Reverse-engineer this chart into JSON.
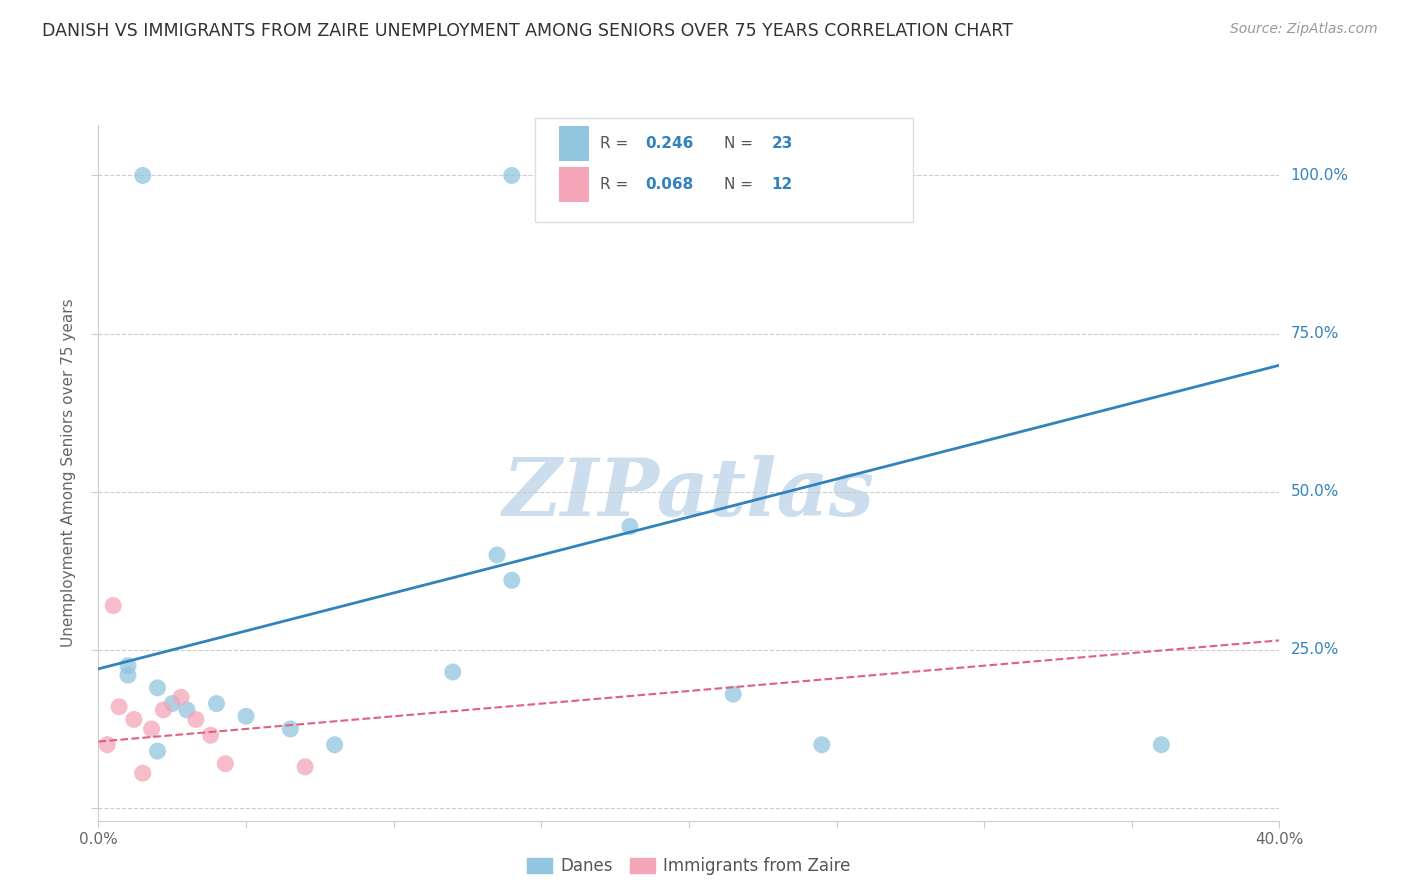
{
  "title": "DANISH VS IMMIGRANTS FROM ZAIRE UNEMPLOYMENT AMONG SENIORS OVER 75 YEARS CORRELATION CHART",
  "source": "Source: ZipAtlas.com",
  "ylabel": "Unemployment Among Seniors over 75 years",
  "xlim": [
    0.0,
    0.4
  ],
  "ylim": [
    -0.02,
    1.08
  ],
  "yticks": [
    0.0,
    0.25,
    0.5,
    0.75,
    1.0
  ],
  "ytick_labels": [
    "",
    "25.0%",
    "50.0%",
    "75.0%",
    "100.0%"
  ],
  "xticks": [
    0.0,
    0.05,
    0.1,
    0.15,
    0.2,
    0.25,
    0.3,
    0.35,
    0.4
  ],
  "xtick_labels": [
    "0.0%",
    "",
    "",
    "",
    "",
    "",
    "",
    "",
    "40.0%"
  ],
  "danes_R": 0.246,
  "danes_N": 23,
  "immigrants_R": 0.068,
  "immigrants_N": 12,
  "danes_color": "#92c5de",
  "immigrants_color": "#f4a6b8",
  "regression_blue_color": "#3182bd",
  "regression_pink_color": "#e06080",
  "danes_x": [
    0.015,
    0.14,
    0.18,
    0.19,
    0.2,
    0.21,
    0.01,
    0.02,
    0.025,
    0.03,
    0.04,
    0.05,
    0.065,
    0.08,
    0.12,
    0.135,
    0.14,
    0.18,
    0.215,
    0.245,
    0.36,
    0.01,
    0.02
  ],
  "danes_y": [
    1.0,
    1.0,
    1.0,
    1.0,
    1.0,
    1.0,
    0.21,
    0.19,
    0.165,
    0.155,
    0.165,
    0.145,
    0.125,
    0.1,
    0.215,
    0.4,
    0.36,
    0.445,
    0.18,
    0.1,
    0.1,
    0.225,
    0.09
  ],
  "immigrants_x": [
    0.003,
    0.007,
    0.012,
    0.018,
    0.022,
    0.028,
    0.033,
    0.038,
    0.043,
    0.07,
    0.005,
    0.015
  ],
  "immigrants_y": [
    0.1,
    0.16,
    0.14,
    0.125,
    0.155,
    0.175,
    0.14,
    0.115,
    0.07,
    0.065,
    0.32,
    0.055
  ],
  "blue_line_x": [
    0.0,
    0.4
  ],
  "blue_line_y": [
    0.22,
    0.7
  ],
  "pink_line_x": [
    0.0,
    0.4
  ],
  "pink_line_y": [
    0.105,
    0.265
  ],
  "legend_blue_label": "Danes",
  "legend_pink_label": "Immigrants from Zaire",
  "watermark": "ZIPatlas",
  "watermark_color": "#ccdded",
  "background_color": "#ffffff",
  "grid_color": "#cccccc"
}
